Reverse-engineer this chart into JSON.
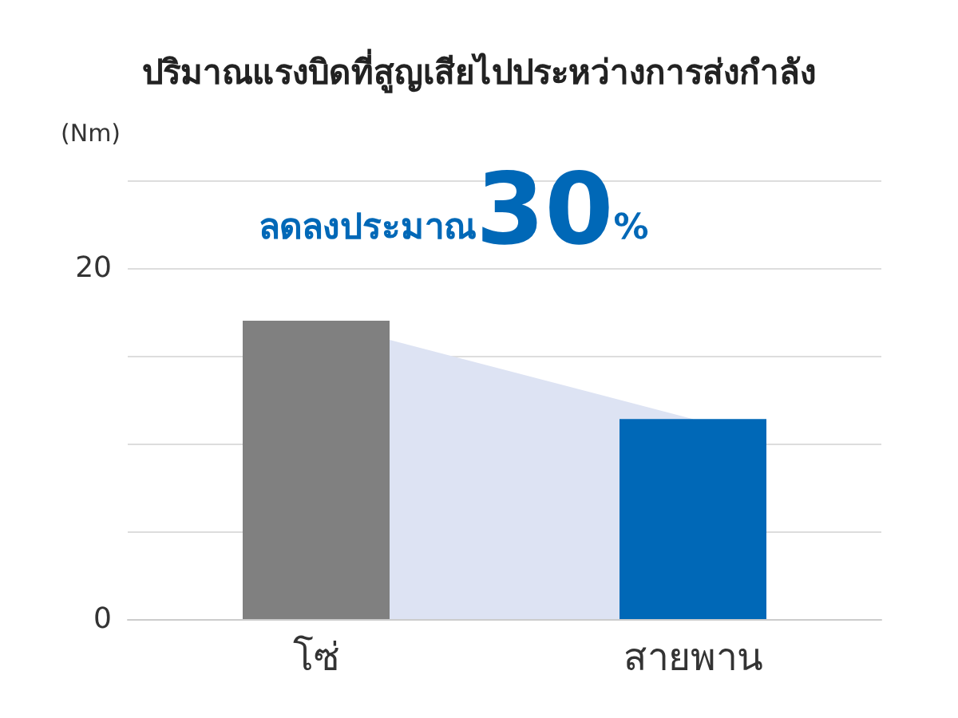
{
  "chart_data": {
    "type": "bar",
    "title": "ปริมาณแรงบิดที่สูญเสียไปประหว่างการส่งกำลัง",
    "ylabel": "(Nm)",
    "annotations": [
      "ลดลงประมาณ30%"
    ],
    "categories": [
      "โซ่",
      "สายพาน"
    ],
    "series": [
      {
        "values": [
          17,
          11.4
        ],
        "colors": [
          "#808080",
          "#0068b7"
        ]
      },
      {
        "type": "area",
        "color": "#dde3f3",
        "values": [
          17,
          11.4
        ]
      }
    ],
    "ylim": [
      0,
      25
    ],
    "yticks": [
      0,
      {
        "value": 5,
        "label": null
      },
      {
        "value": 10,
        "label": null
      },
      {
        "value": 15,
        "label": null
      },
      20,
      {
        "value": 25,
        "label": null
      }
    ],
    "grid": "y"
  }
}
